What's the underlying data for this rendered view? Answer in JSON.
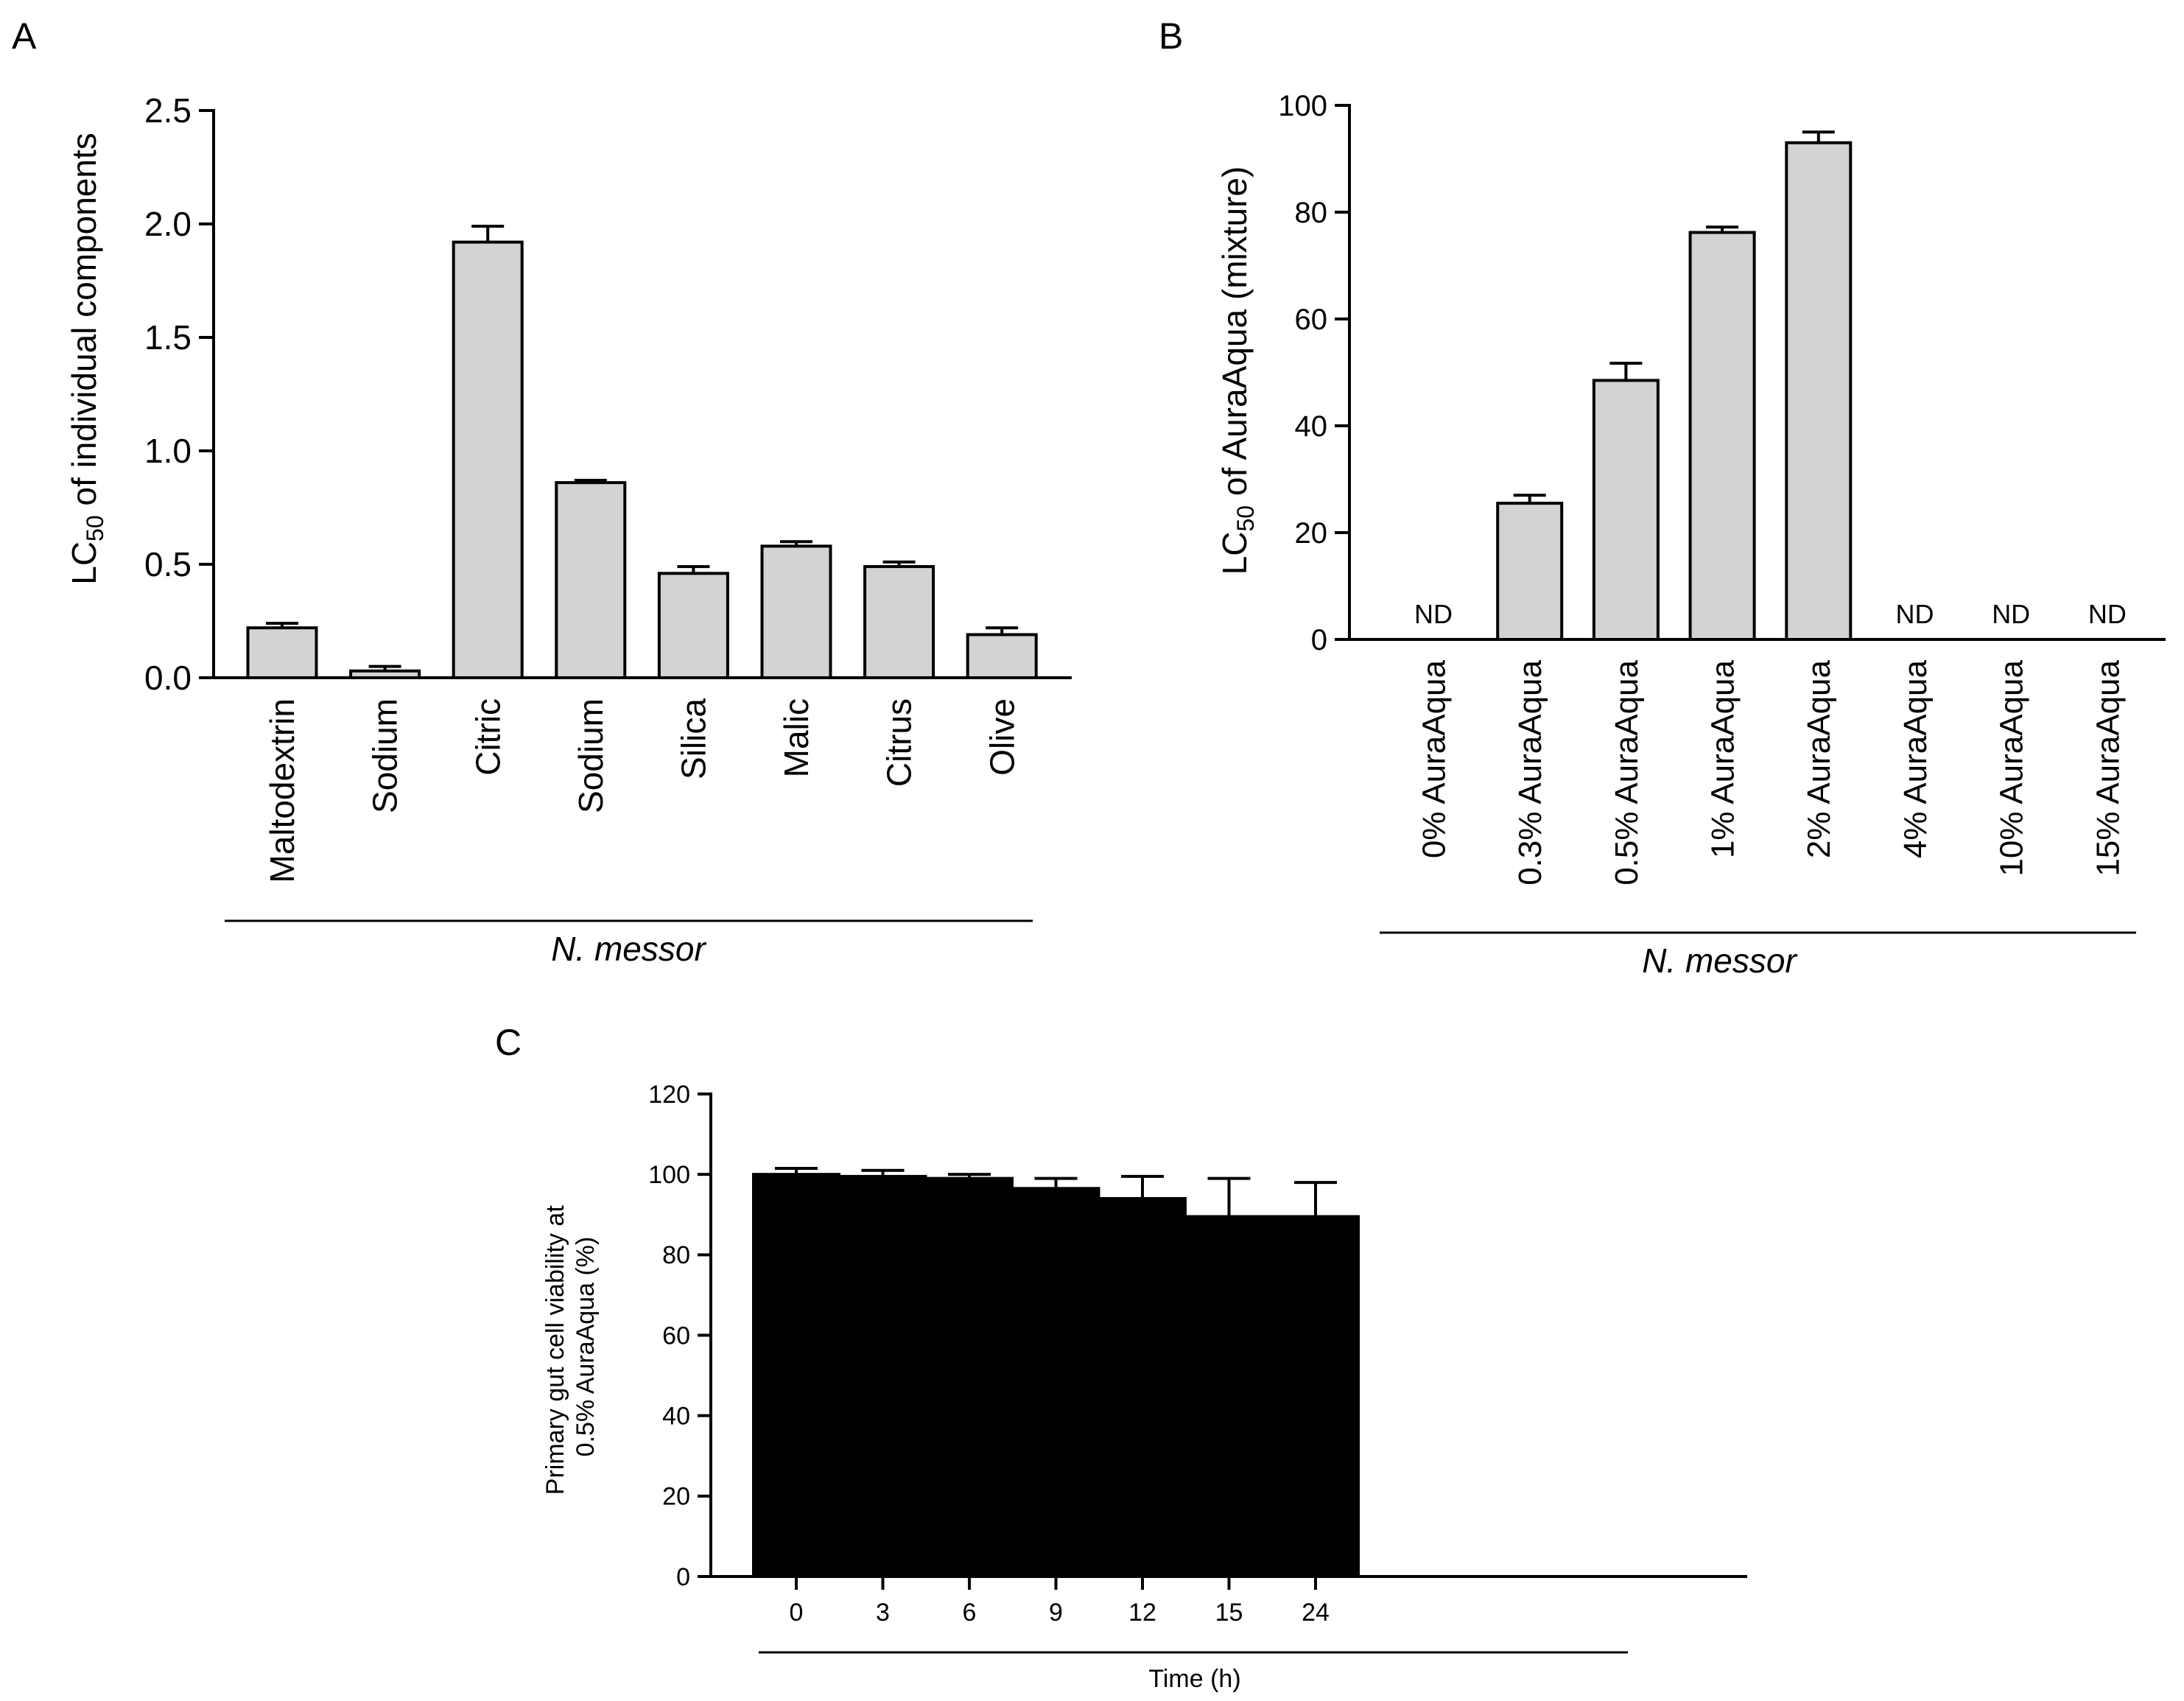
{
  "chart_data": [
    {
      "panel": "A",
      "type": "bar",
      "categories": [
        "Maltodextrin",
        "Sodium",
        "Citric",
        "Sodium",
        "Silica",
        "Malic",
        "Citrus",
        "Olive"
      ],
      "values": [
        0.22,
        0.03,
        1.92,
        0.86,
        0.46,
        0.58,
        0.49,
        0.19
      ],
      "errors": [
        0.02,
        0.02,
        0.07,
        0.01,
        0.03,
        0.02,
        0.02,
        0.03
      ],
      "value_labels": [
        "",
        "",
        "",
        "",
        "",
        "",
        "",
        ""
      ],
      "ylabel_main": "LC",
      "ylabel_sub": "50",
      "ylabel_rest": " of individual components",
      "ylim": [
        0,
        2.5
      ],
      "yticks": [
        0,
        0.5,
        1,
        1.5,
        2,
        2.5
      ],
      "ytick_labels": [
        "0.0",
        "0.5",
        "1.0",
        "1.5",
        "2.0",
        "2.5"
      ],
      "group_label": "N. messor",
      "bar_color": "#d3d3d3",
      "category_rotation": -90
    },
    {
      "panel": "B",
      "type": "bar",
      "categories": [
        "0% AuraAqua",
        "0.3% AuraAqua",
        "0.5% AuraAqua",
        "1% AuraAqua",
        "2% AuraAqua",
        "4% AuraAqua",
        "10% AuraAqua",
        "15% AuraAqua"
      ],
      "values": [
        0,
        25.5,
        48.5,
        76.2,
        93,
        0,
        0,
        0
      ],
      "errors": [
        0,
        1.5,
        3.2,
        1.0,
        2.0,
        0,
        0,
        0
      ],
      "value_labels": [
        "ND",
        "",
        "",
        "",
        "",
        "ND",
        "ND",
        "ND"
      ],
      "ylabel_main": "LC",
      "ylabel_sub": "50",
      "ylabel_rest": " of AuraAqua (mixture)",
      "ylim": [
        0,
        100
      ],
      "yticks": [
        0,
        20,
        40,
        60,
        80,
        100
      ],
      "ytick_labels": [
        "0",
        "20",
        "40",
        "60",
        "80",
        "100"
      ],
      "group_label": "N. messor",
      "bar_color": "#d3d3d3",
      "category_rotation": -90
    },
    {
      "panel": "C",
      "type": "bar",
      "categories": [
        "0",
        "3",
        "6",
        "9",
        "12",
        "15",
        "24"
      ],
      "values": [
        100,
        99.5,
        99,
        96.5,
        94,
        89.5,
        89.5
      ],
      "errors": [
        1.5,
        1.5,
        1.0,
        2.5,
        5.5,
        9.5,
        8.5
      ],
      "value_labels": [
        "",
        "",
        "",
        "",
        "",
        "",
        ""
      ],
      "ylabel_line1": "Primary gut cell viability at",
      "ylabel_line2": "0.5% AuraAqua (%)",
      "xlabel": "Time (h)",
      "ylim": [
        0,
        120
      ],
      "yticks": [
        0,
        20,
        40,
        60,
        80,
        100,
        120
      ],
      "ytick_labels": [
        "0",
        "20",
        "40",
        "60",
        "80",
        "100",
        "120"
      ],
      "bar_color": "#000000",
      "category_rotation": 0
    }
  ],
  "panel_labels": [
    "A",
    "B",
    "C"
  ]
}
